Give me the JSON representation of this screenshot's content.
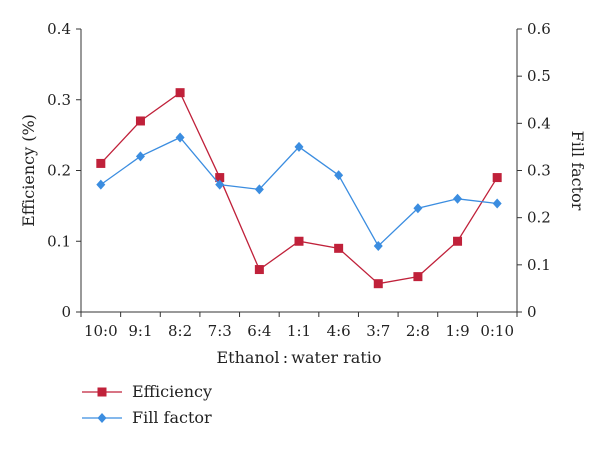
{
  "chart_data": {
    "type": "line",
    "title": "",
    "xlabel": "Ethanol : water ratio",
    "ylabel_left": "Efficiency (%)",
    "ylabel_right": "Fill factor",
    "categories": [
      "10:0",
      "9:1",
      "8:2",
      "7:3",
      "6:4",
      "1:1",
      "4:6",
      "3:7",
      "2:8",
      "1:9",
      "0:10"
    ],
    "ylim_left": [
      0,
      0.4
    ],
    "yticks_left": [
      "0",
      "0.1",
      "0.2",
      "0.3",
      "0.4"
    ],
    "ylim_right": [
      0,
      0.6
    ],
    "yticks_right": [
      "0",
      "0.1",
      "0.2",
      "0.3",
      "0.4",
      "0.5",
      "0.6"
    ],
    "grid": false,
    "legend_position": "bottom-left",
    "series": [
      {
        "name": "Efficiency",
        "axis": "left",
        "marker": "square",
        "color": "#c0213a",
        "values": [
          0.21,
          0.27,
          0.31,
          0.19,
          0.06,
          0.1,
          0.09,
          0.04,
          0.05,
          0.1,
          0.19
        ]
      },
      {
        "name": "Fill factor",
        "axis": "right",
        "marker": "diamond",
        "color": "#3b8de0",
        "values": [
          0.27,
          0.33,
          0.37,
          0.27,
          0.26,
          0.35,
          0.29,
          0.14,
          0.22,
          0.24,
          0.23
        ]
      }
    ]
  }
}
